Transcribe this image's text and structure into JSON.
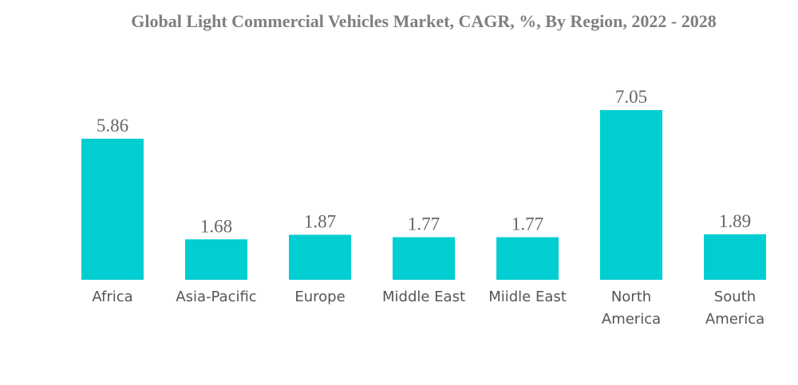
{
  "chart_data": {
    "type": "bar",
    "title": "Global Light Commercial Vehicles Market, CAGR, %, By Region, 2022 - 2028",
    "categories": [
      "Africa",
      "Asia-Pacific",
      "Europe",
      "Middle East",
      "Miidle East",
      "North America",
      "South America"
    ],
    "values": [
      5.86,
      1.68,
      1.87,
      1.77,
      1.77,
      7.05,
      1.89
    ],
    "xlabel": "",
    "ylabel": "",
    "ylim": [
      0,
      7.5
    ],
    "grid": false,
    "data_labels": true,
    "bar_color": "#00CED1"
  }
}
